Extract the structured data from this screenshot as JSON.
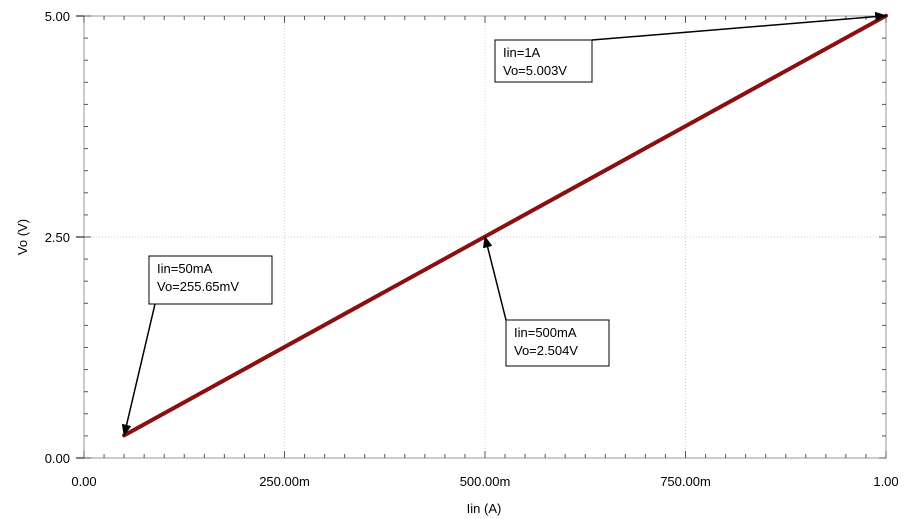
{
  "chart_data": {
    "type": "line",
    "title": "",
    "xlabel": "Iin (A)",
    "ylabel": "Vo (V)",
    "xlim": [
      0,
      1
    ],
    "ylim": [
      0,
      5
    ],
    "grid": true,
    "x_ticks": [
      {
        "value": 0,
        "label": "0.00"
      },
      {
        "value": 0.25,
        "label": "250.00m"
      },
      {
        "value": 0.5,
        "label": "500.00m"
      },
      {
        "value": 0.75,
        "label": "750.00m"
      },
      {
        "value": 1,
        "label": "1.00"
      }
    ],
    "y_ticks": [
      {
        "value": 0,
        "label": "0.00"
      },
      {
        "value": 2.5,
        "label": "2.50"
      },
      {
        "value": 5,
        "label": "5.00"
      }
    ],
    "series": [
      {
        "color": "#8b0f0f",
        "x": [
          0.05,
          1.0
        ],
        "y": [
          0.25565,
          5.003
        ]
      }
    ],
    "annotations": [
      {
        "lines": [
          "Iin=1A",
          "Vo=5.003V"
        ],
        "target": [
          1.0,
          5.003
        ]
      },
      {
        "lines": [
          "Iin=50mA",
          "Vo=255.65mV"
        ],
        "target": [
          0.05,
          0.25565
        ]
      },
      {
        "lines": [
          "Iin=500mA",
          "Vo=2.504V"
        ],
        "target": [
          0.5,
          2.504
        ]
      }
    ]
  }
}
